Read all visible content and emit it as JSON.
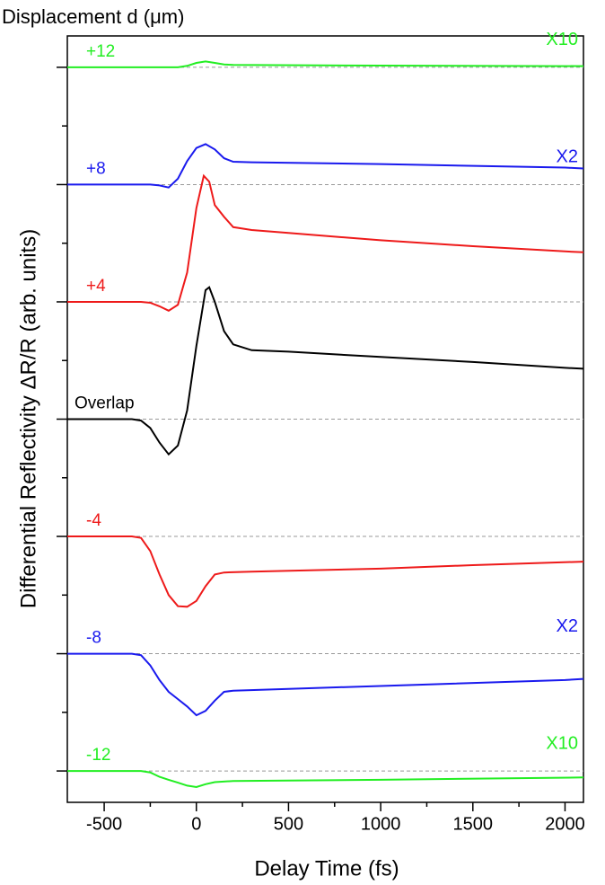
{
  "chart_data": {
    "type": "line",
    "title": "Displacement d (μm)",
    "x_label": "Delay Time (fs)",
    "y_label": "Differential Reflectivity ΔR/R (arb. units)",
    "xlim": [
      -700,
      2100
    ],
    "xticks": [
      -500,
      0,
      500,
      1000,
      1500,
      2000
    ],
    "xminor_ticks": [
      -250,
      250,
      750,
      1250,
      1750
    ],
    "ylim": [
      -13.07,
      13.07
    ],
    "yticks": [
      -12,
      -8,
      -4,
      0,
      4,
      8,
      12
    ],
    "yminor_ticks": [
      -10,
      -6,
      -2,
      2,
      6,
      10
    ],
    "series": [
      {
        "name": "+12",
        "color": "#22ee22",
        "baseline": 12,
        "scale_label": "X10",
        "x": [
          -700,
          -100,
          -50,
          0,
          50,
          100,
          150,
          200,
          1000,
          2100
        ],
        "values": [
          12,
          12,
          12.05,
          12.15,
          12.2,
          12.15,
          12.1,
          12.08,
          12.06,
          12.04
        ]
      },
      {
        "name": "+8",
        "color": "#1a1aee",
        "baseline": 8,
        "scale_label": "X2",
        "x": [
          -700,
          -250,
          -200,
          -150,
          -100,
          -50,
          0,
          50,
          100,
          150,
          200,
          300,
          1000,
          2000,
          2100
        ],
        "values": [
          8,
          8,
          7.97,
          7.9,
          8.2,
          8.8,
          9.25,
          9.38,
          9.2,
          8.9,
          8.78,
          8.76,
          8.7,
          8.58,
          8.55
        ]
      },
      {
        "name": "+4",
        "color": "#ee1a1a",
        "baseline": 4,
        "x": [
          -700,
          -300,
          -250,
          -200,
          -150,
          -100,
          -50,
          0,
          40,
          70,
          100,
          150,
          200,
          300,
          500,
          1000,
          1500,
          2000,
          2100
        ],
        "values": [
          4,
          4,
          3.97,
          3.85,
          3.7,
          3.9,
          5.0,
          7.2,
          8.3,
          8.1,
          7.3,
          6.9,
          6.55,
          6.45,
          6.35,
          6.1,
          5.9,
          5.72,
          5.69
        ]
      },
      {
        "name": "Overlap",
        "color": "#000000",
        "baseline": 0,
        "x": [
          -700,
          -350,
          -300,
          -250,
          -200,
          -150,
          -100,
          -50,
          0,
          50,
          70,
          100,
          150,
          200,
          300,
          500,
          1000,
          1500,
          2000,
          2100
        ],
        "values": [
          0,
          0,
          -0.05,
          -0.3,
          -0.8,
          -1.2,
          -0.9,
          0.3,
          2.5,
          4.4,
          4.5,
          4.0,
          3.0,
          2.55,
          2.35,
          2.3,
          2.12,
          1.95,
          1.75,
          1.72
        ]
      },
      {
        "name": "-4",
        "color": "#ee1a1a",
        "baseline": -4,
        "x": [
          -700,
          -350,
          -300,
          -250,
          -200,
          -150,
          -100,
          -50,
          0,
          50,
          100,
          150,
          300,
          1000,
          1500,
          2100
        ],
        "values": [
          -4,
          -4,
          -4.05,
          -4.5,
          -5.3,
          -6.0,
          -6.38,
          -6.4,
          -6.2,
          -5.7,
          -5.3,
          -5.23,
          -5.2,
          -5.1,
          -4.98,
          -4.86
        ]
      },
      {
        "name": "-8",
        "color": "#1a1aee",
        "baseline": -8,
        "scale_label": "X2",
        "x": [
          -700,
          -350,
          -300,
          -250,
          -200,
          -150,
          -100,
          -50,
          0,
          50,
          100,
          150,
          200,
          500,
          1000,
          2000,
          2100
        ],
        "values": [
          -8,
          -8,
          -8.05,
          -8.4,
          -8.9,
          -9.3,
          -9.55,
          -9.8,
          -10.1,
          -9.95,
          -9.6,
          -9.3,
          -9.26,
          -9.2,
          -9.1,
          -8.9,
          -8.86
        ]
      },
      {
        "name": "-12",
        "color": "#22ee22",
        "baseline": -12,
        "scale_label": "X10",
        "x": [
          -700,
          -300,
          -250,
          -200,
          -150,
          -100,
          -50,
          0,
          50,
          100,
          200,
          1000,
          2100
        ],
        "values": [
          -12,
          -12,
          -12.05,
          -12.2,
          -12.3,
          -12.4,
          -12.5,
          -12.55,
          -12.45,
          -12.38,
          -12.34,
          -12.3,
          -12.22
        ]
      }
    ]
  }
}
